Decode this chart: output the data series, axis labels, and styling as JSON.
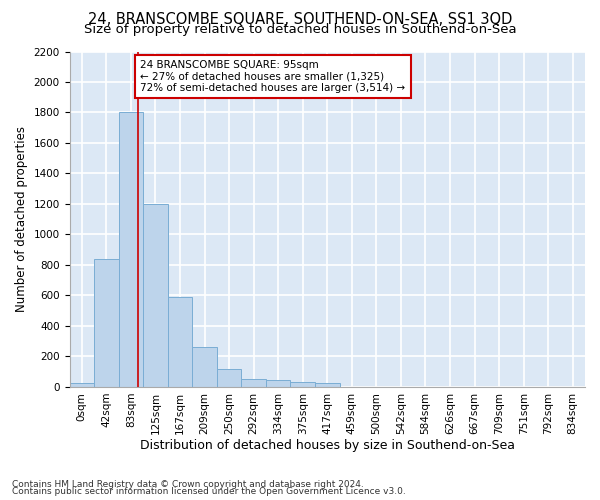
{
  "title1": "24, BRANSCOMBE SQUARE, SOUTHEND-ON-SEA, SS1 3QD",
  "title2": "Size of property relative to detached houses in Southend-on-Sea",
  "xlabel": "Distribution of detached houses by size in Southend-on-Sea",
  "ylabel": "Number of detached properties",
  "footnote1": "Contains HM Land Registry data © Crown copyright and database right 2024.",
  "footnote2": "Contains public sector information licensed under the Open Government Licence v3.0.",
  "bar_labels": [
    "0sqm",
    "42sqm",
    "83sqm",
    "125sqm",
    "167sqm",
    "209sqm",
    "250sqm",
    "292sqm",
    "334sqm",
    "375sqm",
    "417sqm",
    "459sqm",
    "500sqm",
    "542sqm",
    "584sqm",
    "626sqm",
    "667sqm",
    "709sqm",
    "751sqm",
    "792sqm",
    "834sqm"
  ],
  "bar_values": [
    25,
    840,
    1800,
    1200,
    590,
    260,
    115,
    50,
    48,
    32,
    25,
    0,
    0,
    0,
    0,
    0,
    0,
    0,
    0,
    0,
    0
  ],
  "bar_color": "#bdd4eb",
  "bar_edge_color": "#7aadd4",
  "fig_background": "#ffffff",
  "ax_background": "#dce8f5",
  "grid_color": "#ffffff",
  "annotation_text": "24 BRANSCOMBE SQUARE: 95sqm\n← 27% of detached houses are smaller (1,325)\n72% of semi-detached houses are larger (3,514) →",
  "annotation_box_facecolor": "#ffffff",
  "annotation_box_edgecolor": "#cc0000",
  "vline_color": "#cc0000",
  "ylim": [
    0,
    2200
  ],
  "yticks": [
    0,
    200,
    400,
    600,
    800,
    1000,
    1200,
    1400,
    1600,
    1800,
    2000,
    2200
  ],
  "title1_fontsize": 10.5,
  "title2_fontsize": 9.5,
  "xlabel_fontsize": 9,
  "ylabel_fontsize": 8.5,
  "tick_fontsize": 7.5,
  "footnote_fontsize": 6.5
}
